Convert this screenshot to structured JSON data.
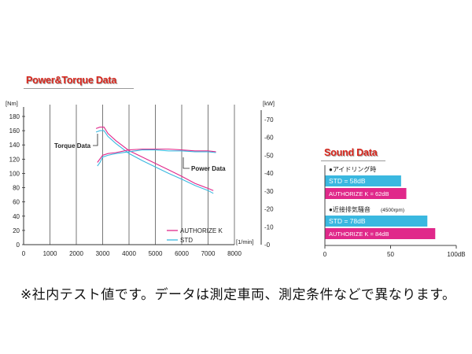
{
  "power_torque": {
    "title": "Power&Torque Data",
    "left_unit": "[Nm]",
    "right_unit": "[kW]",
    "x_unit": "[1/min]",
    "torque_label": "Torque Data",
    "power_label": "Power Data"
  },
  "sound": {
    "title": "Sound Data",
    "group1_label": "●アイドリング時",
    "group2_label": "●近接排気騒音",
    "group2_sub": "(4500rpm)"
  },
  "footnote": "※社内テスト値です。データは測定車両、測定条件などで異なります。",
  "colors": {
    "authorize": "#e0288a",
    "std": "#3ab8e0",
    "title_red": "#d9261c"
  },
  "chart_data": [
    {
      "type": "line",
      "x_ticks": [
        "0",
        "1000",
        "2000",
        "3000",
        "4000",
        "5000",
        "6000",
        "7000",
        "8000"
      ],
      "xlim": [
        0,
        8000
      ],
      "y_left_ticks": [
        "0",
        "20",
        "40",
        "60",
        "80",
        "100",
        "120",
        "140",
        "160",
        "180"
      ],
      "y_left_lim": [
        0,
        180
      ],
      "y_right_ticks": [
        "0",
        "10",
        "20",
        "30",
        "40",
        "50",
        "60",
        "70"
      ],
      "y_right_lim": [
        0,
        70
      ],
      "grid": "vertical",
      "legend": [
        "AUTHORIZE K",
        "STD"
      ],
      "series": [
        {
          "name": "AUTHORIZE K",
          "axis": "left",
          "x": [
            2750,
            2900,
            3050,
            3200,
            3500,
            4000,
            4500,
            5000,
            5500,
            6000,
            6500,
            7000,
            7200
          ],
          "y": [
            163,
            165,
            165,
            156,
            146,
            132,
            123,
            114,
            105,
            96,
            86,
            79,
            76
          ]
        },
        {
          "name": "STD",
          "axis": "left",
          "x": [
            2750,
            2900,
            3050,
            3200,
            3500,
            4000,
            4500,
            5000,
            5500,
            6000,
            6500,
            7000,
            7200
          ],
          "y": [
            158,
            160,
            160,
            152,
            142,
            128,
            118,
            109,
            100,
            92,
            83,
            76,
            72
          ]
        },
        {
          "name": "AUTHORIZE K",
          "axis": "right",
          "x": [
            2800,
            2900,
            3000,
            3200,
            3500,
            4000,
            4500,
            5000,
            5500,
            6000,
            6500,
            7000,
            7300
          ],
          "y": [
            46,
            48,
            50,
            51,
            51.5,
            53,
            53.5,
            53.5,
            53.5,
            53,
            52.5,
            52.5,
            52
          ]
        },
        {
          "name": "STD",
          "axis": "right",
          "x": [
            2800,
            2900,
            3000,
            3200,
            3500,
            4000,
            4500,
            5000,
            5500,
            6000,
            6500,
            7000,
            7300
          ],
          "y": [
            44,
            46,
            49,
            50,
            51,
            52,
            53,
            53,
            52.5,
            52.5,
            52,
            52,
            51.5
          ]
        }
      ]
    },
    {
      "type": "bar",
      "orientation": "horizontal",
      "x_ticks": [
        "0",
        "50",
        "100dB"
      ],
      "xlim": [
        0,
        100
      ],
      "groups": [
        {
          "label": "●アイドリング時",
          "bars": [
            {
              "name": "STD",
              "text": "STD = 58dB",
              "value": 58,
              "color": "#3ab8e0"
            },
            {
              "name": "AUTHORIZE K",
              "text": "AUTHORIZE K = 62dB",
              "value": 62,
              "color": "#e0288a"
            }
          ]
        },
        {
          "label": "●近接排気騒音(4500rpm)",
          "bars": [
            {
              "name": "STD",
              "text": "STD = 78dB",
              "value": 78,
              "color": "#3ab8e0"
            },
            {
              "name": "AUTHORIZE K",
              "text": "AUTHORIZE K = 84dB",
              "value": 84,
              "color": "#e0288a"
            }
          ]
        }
      ]
    }
  ]
}
